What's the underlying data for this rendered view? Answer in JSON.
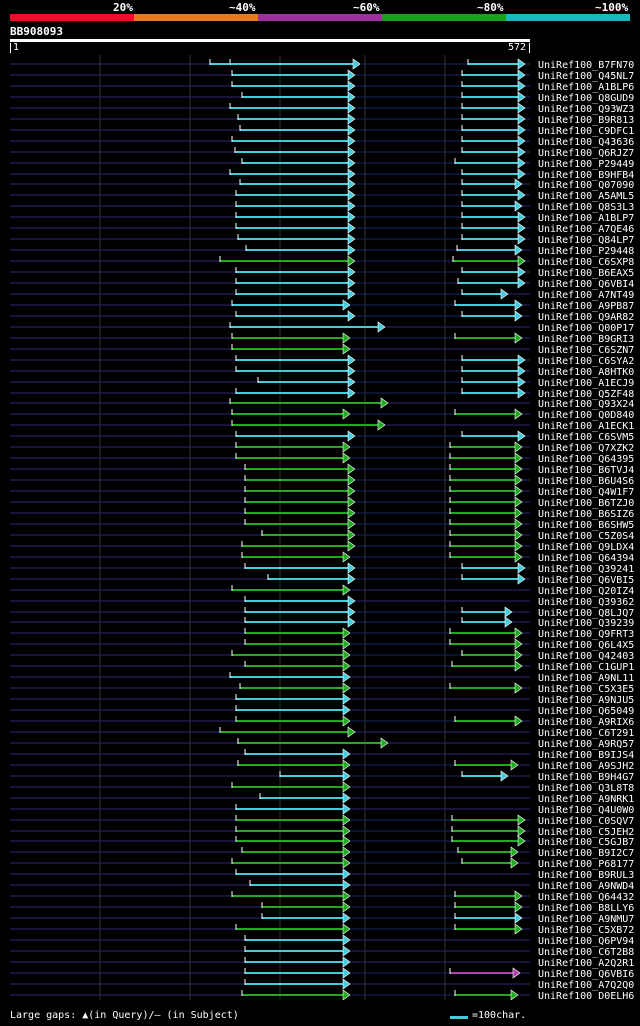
{
  "legend": {
    "labels": [
      "20%",
      "~40%",
      "~60%",
      "~80%",
      "~100%"
    ],
    "colors": [
      "#e8102a",
      "#e87a1e",
      "#a030a0",
      "#1aa01a",
      "#1ab8c0"
    ]
  },
  "query": {
    "name": "BB908093",
    "start": "1",
    "end": "572"
  },
  "footer": {
    "gaps_label": "Large gaps: ▲(in Query)/– (in Subject)",
    "scale_label": "=100char."
  },
  "hits": [
    {
      "name": "UniRef100_B7FN70",
      "c": "teal",
      "segs": [
        [
          230,
          360,
          "r"
        ],
        [
          468,
          525,
          "r"
        ]
      ],
      "pre": 210
    },
    {
      "name": "UniRef100_Q45NL7",
      "c": "teal",
      "segs": [
        [
          232,
          355,
          "r"
        ],
        [
          462,
          525,
          "r"
        ]
      ]
    },
    {
      "name": "UniRef100_A1BLP6",
      "c": "teal",
      "segs": [
        [
          232,
          355,
          "r"
        ],
        [
          462,
          525,
          "r"
        ]
      ]
    },
    {
      "name": "UniRef100_Q8GUD9",
      "c": "teal",
      "segs": [
        [
          242,
          355,
          "r"
        ],
        [
          462,
          525,
          "r"
        ]
      ]
    },
    {
      "name": "UniRef100_Q93WZ3",
      "c": "teal",
      "segs": [
        [
          230,
          355,
          "r"
        ],
        [
          462,
          525,
          "r"
        ]
      ]
    },
    {
      "name": "UniRef100_B9R813",
      "c": "teal",
      "segs": [
        [
          238,
          355,
          "r"
        ],
        [
          462,
          525,
          "r"
        ]
      ]
    },
    {
      "name": "UniRef100_C9DFC1",
      "c": "teal",
      "segs": [
        [
          240,
          355,
          "r"
        ],
        [
          462,
          525,
          "r"
        ]
      ]
    },
    {
      "name": "UniRef100_Q43636",
      "c": "teal",
      "segs": [
        [
          232,
          355,
          "r"
        ],
        [
          462,
          525,
          "r"
        ]
      ]
    },
    {
      "name": "UniRef100_Q6RJZ7",
      "c": "teal",
      "segs": [
        [
          235,
          355,
          "r"
        ],
        [
          462,
          525,
          "r"
        ]
      ]
    },
    {
      "name": "UniRef100_P29449",
      "c": "teal",
      "segs": [
        [
          242,
          355,
          "r"
        ],
        [
          455,
          525,
          "r"
        ]
      ]
    },
    {
      "name": "UniRef100_B9HFB4",
      "c": "teal",
      "segs": [
        [
          230,
          355,
          "r"
        ],
        [
          462,
          525,
          "r"
        ]
      ]
    },
    {
      "name": "UniRef100_Q07090",
      "c": "teal",
      "segs": [
        [
          240,
          355,
          "r"
        ],
        [
          462,
          522,
          "r"
        ]
      ]
    },
    {
      "name": "UniRef100_A5AML5",
      "c": "teal",
      "segs": [
        [
          236,
          355,
          "r"
        ],
        [
          462,
          525,
          "r"
        ]
      ]
    },
    {
      "name": "UniRef100_Q8S3L3",
      "c": "teal",
      "segs": [
        [
          236,
          355,
          "r"
        ],
        [
          462,
          522,
          "r"
        ]
      ]
    },
    {
      "name": "UniRef100_A1BLP7",
      "c": "teal",
      "segs": [
        [
          236,
          355,
          "r"
        ],
        [
          462,
          525,
          "r"
        ]
      ]
    },
    {
      "name": "UniRef100_A7QE46",
      "c": "teal",
      "segs": [
        [
          236,
          355,
          "r"
        ],
        [
          462,
          525,
          "r"
        ]
      ]
    },
    {
      "name": "UniRef100_Q84LP7",
      "c": "teal",
      "segs": [
        [
          238,
          355,
          "r"
        ],
        [
          462,
          525,
          "r"
        ]
      ]
    },
    {
      "name": "UniRef100_P29448",
      "c": "teal",
      "segs": [
        [
          246,
          355,
          "r"
        ],
        [
          457,
          522,
          "r"
        ]
      ]
    },
    {
      "name": "UniRef100_C6SXP8",
      "c": "green",
      "segs": [
        [
          220,
          355,
          "r"
        ],
        [
          453,
          525,
          "r"
        ]
      ]
    },
    {
      "name": "UniRef100_B6EAX5",
      "c": "teal",
      "segs": [
        [
          236,
          355,
          "r"
        ],
        [
          462,
          525,
          "r"
        ]
      ]
    },
    {
      "name": "UniRef100_Q6VBI4",
      "c": "teal",
      "segs": [
        [
          236,
          355,
          "r"
        ],
        [
          458,
          525,
          "r"
        ]
      ]
    },
    {
      "name": "UniRef100_A7NT49",
      "c": "teal",
      "segs": [
        [
          236,
          355,
          "r"
        ],
        [
          462,
          508,
          "r"
        ]
      ]
    },
    {
      "name": "UniRef100_A9PB87",
      "c": "teal",
      "segs": [
        [
          232,
          350,
          "r"
        ],
        [
          455,
          522,
          "r"
        ]
      ]
    },
    {
      "name": "UniRef100_Q9AR82",
      "c": "teal",
      "segs": [
        [
          236,
          355,
          "r"
        ],
        [
          462,
          522,
          "r"
        ]
      ]
    },
    {
      "name": "UniRef100_Q00P17",
      "c": "teal",
      "segs": [
        [
          230,
          385,
          "r"
        ]
      ]
    },
    {
      "name": "UniRef100_B9GRI3",
      "c": "green",
      "segs": [
        [
          232,
          350,
          "r"
        ],
        [
          455,
          522,
          "r"
        ]
      ]
    },
    {
      "name": "UniRef100_C6SZN7",
      "c": "green",
      "segs": [
        [
          232,
          350,
          "r"
        ]
      ]
    },
    {
      "name": "UniRef100_C6SYA2",
      "c": "teal",
      "segs": [
        [
          236,
          355,
          "r"
        ],
        [
          462,
          525,
          "r"
        ]
      ]
    },
    {
      "name": "UniRef100_A8HTK0",
      "c": "teal",
      "segs": [
        [
          236,
          355,
          "r"
        ],
        [
          462,
          525,
          "r"
        ]
      ]
    },
    {
      "name": "UniRef100_A1ECJ9",
      "c": "teal",
      "segs": [
        [
          258,
          355,
          "r"
        ],
        [
          462,
          525,
          "r"
        ]
      ]
    },
    {
      "name": "UniRef100_Q5ZF48",
      "c": "teal",
      "segs": [
        [
          236,
          355,
          "r"
        ],
        [
          462,
          525,
          "r"
        ]
      ]
    },
    {
      "name": "UniRef100_Q93X24",
      "c": "green",
      "segs": [
        [
          230,
          388,
          "r"
        ]
      ]
    },
    {
      "name": "UniRef100_Q0D840",
      "c": "green",
      "segs": [
        [
          232,
          350,
          "r"
        ],
        [
          455,
          522,
          "r"
        ]
      ]
    },
    {
      "name": "UniRef100_A1ECK1",
      "c": "green",
      "segs": [
        [
          232,
          385,
          "r"
        ]
      ]
    },
    {
      "name": "UniRef100_C6SVM5",
      "c": "teal",
      "segs": [
        [
          236,
          355,
          "r"
        ],
        [
          462,
          525,
          "r"
        ]
      ]
    },
    {
      "name": "UniRef100_Q7XZK2",
      "c": "green",
      "segs": [
        [
          236,
          350,
          "r"
        ],
        [
          450,
          522,
          "r"
        ]
      ]
    },
    {
      "name": "UniRef100_Q64395",
      "c": "green",
      "segs": [
        [
          236,
          350,
          "r"
        ],
        [
          450,
          522,
          "r"
        ]
      ]
    },
    {
      "name": "UniRef100_B6TVJ4",
      "c": "green",
      "segs": [
        [
          245,
          355,
          "r"
        ],
        [
          450,
          522,
          "r"
        ]
      ]
    },
    {
      "name": "UniRef100_B6U4S6",
      "c": "green",
      "segs": [
        [
          245,
          355,
          "r"
        ],
        [
          450,
          522,
          "r"
        ]
      ]
    },
    {
      "name": "UniRef100_Q4W1F7",
      "c": "green",
      "segs": [
        [
          245,
          355,
          "r"
        ],
        [
          450,
          522,
          "r"
        ]
      ]
    },
    {
      "name": "UniRef100_B6TZJ0",
      "c": "green",
      "segs": [
        [
          245,
          355,
          "r"
        ],
        [
          450,
          522,
          "r"
        ]
      ]
    },
    {
      "name": "UniRef100_B6SIZ6",
      "c": "green",
      "segs": [
        [
          245,
          355,
          "r"
        ],
        [
          450,
          522,
          "r"
        ]
      ]
    },
    {
      "name": "UniRef100_B6SHW5",
      "c": "green",
      "segs": [
        [
          245,
          355,
          "r"
        ],
        [
          450,
          522,
          "r"
        ]
      ]
    },
    {
      "name": "UniRef100_C5Z0S4",
      "c": "green",
      "segs": [
        [
          262,
          355,
          "r"
        ],
        [
          450,
          522,
          "r"
        ]
      ]
    },
    {
      "name": "UniRef100_Q9LDX4",
      "c": "green",
      "segs": [
        [
          242,
          355,
          "r"
        ],
        [
          450,
          522,
          "r"
        ]
      ]
    },
    {
      "name": "UniRef100_Q64394",
      "c": "green",
      "segs": [
        [
          242,
          350,
          "r"
        ],
        [
          450,
          522,
          "r"
        ]
      ]
    },
    {
      "name": "UniRef100_Q39241",
      "c": "teal",
      "segs": [
        [
          245,
          355,
          "r"
        ],
        [
          462,
          525,
          "r"
        ]
      ]
    },
    {
      "name": "UniRef100_Q6VBI5",
      "c": "teal",
      "segs": [
        [
          268,
          355,
          "r"
        ],
        [
          462,
          525,
          "r"
        ]
      ]
    },
    {
      "name": "UniRef100_Q20IZ4",
      "c": "green",
      "segs": [
        [
          232,
          350,
          "r"
        ]
      ]
    },
    {
      "name": "UniRef100_Q39362",
      "c": "teal",
      "segs": [
        [
          245,
          355,
          "r"
        ]
      ]
    },
    {
      "name": "UniRef100_Q8LJQ7",
      "c": "teal",
      "segs": [
        [
          245,
          355,
          "r"
        ],
        [
          462,
          512,
          "r"
        ]
      ]
    },
    {
      "name": "UniRef100_Q39239",
      "c": "teal",
      "segs": [
        [
          245,
          355,
          "r"
        ],
        [
          462,
          512,
          "r"
        ]
      ]
    },
    {
      "name": "UniRef100_Q9FRT3",
      "c": "green",
      "segs": [
        [
          245,
          350,
          "r"
        ],
        [
          450,
          522,
          "r"
        ]
      ]
    },
    {
      "name": "UniRef100_Q6L4X5",
      "c": "green",
      "segs": [
        [
          245,
          350,
          "r"
        ],
        [
          450,
          522,
          "r"
        ]
      ]
    },
    {
      "name": "UniRef100_Q42403",
      "c": "green",
      "segs": [
        [
          232,
          350,
          "r"
        ],
        [
          462,
          522,
          "r"
        ]
      ]
    },
    {
      "name": "UniRef100_C1GUP1",
      "c": "green",
      "segs": [
        [
          245,
          350,
          "r"
        ],
        [
          452,
          522,
          "r"
        ]
      ]
    },
    {
      "name": "UniRef100_A9NL11",
      "c": "teal",
      "segs": [
        [
          230,
          350,
          "r"
        ]
      ]
    },
    {
      "name": "UniRef100_C5X3E5",
      "c": "green",
      "segs": [
        [
          240,
          350,
          "r"
        ],
        [
          450,
          522,
          "r"
        ]
      ]
    },
    {
      "name": "UniRef100_A9NJU5",
      "c": "teal",
      "segs": [
        [
          236,
          350,
          "r"
        ]
      ]
    },
    {
      "name": "UniRef100_Q65049",
      "c": "teal",
      "segs": [
        [
          236,
          350,
          "r"
        ]
      ]
    },
    {
      "name": "UniRef100_A9RIX6",
      "c": "green",
      "segs": [
        [
          236,
          350,
          "r"
        ],
        [
          455,
          522,
          "r"
        ]
      ]
    },
    {
      "name": "UniRef100_C6T291",
      "c": "green",
      "segs": [
        [
          220,
          355,
          "r"
        ]
      ]
    },
    {
      "name": "UniRef100_A9RQ57",
      "c": "green",
      "segs": [
        [
          238,
          388,
          "r"
        ]
      ]
    },
    {
      "name": "UniRef100_B9IJS4",
      "c": "teal",
      "segs": [
        [
          245,
          350,
          "r"
        ]
      ]
    },
    {
      "name": "UniRef100_A9SJH2",
      "c": "green",
      "segs": [
        [
          238,
          350,
          "r"
        ],
        [
          455,
          518,
          "r"
        ]
      ]
    },
    {
      "name": "UniRef100_B9H4G7",
      "c": "teal",
      "segs": [
        [
          280,
          350,
          "r"
        ],
        [
          462,
          508,
          "r"
        ]
      ]
    },
    {
      "name": "UniRef100_Q3L8T8",
      "c": "green",
      "segs": [
        [
          232,
          350,
          "r"
        ]
      ]
    },
    {
      "name": "UniRef100_A9NRK1",
      "c": "teal",
      "segs": [
        [
          260,
          350,
          "r"
        ]
      ]
    },
    {
      "name": "UniRef100_Q4U0W0",
      "c": "teal",
      "segs": [
        [
          236,
          350,
          "r"
        ]
      ]
    },
    {
      "name": "UniRef100_C0SQV7",
      "c": "green",
      "segs": [
        [
          236,
          350,
          "r"
        ],
        [
          452,
          525,
          "r"
        ]
      ]
    },
    {
      "name": "UniRef100_C5JEH2",
      "c": "green",
      "segs": [
        [
          236,
          350,
          "r"
        ],
        [
          452,
          525,
          "r"
        ]
      ]
    },
    {
      "name": "UniRef100_C5GJB7",
      "c": "green",
      "segs": [
        [
          236,
          350,
          "r"
        ],
        [
          452,
          525,
          "r"
        ]
      ]
    },
    {
      "name": "UniRef100_B9I2C7",
      "c": "green",
      "segs": [
        [
          242,
          350,
          "r"
        ],
        [
          458,
          518,
          "r"
        ]
      ]
    },
    {
      "name": "UniRef100_P68177",
      "c": "green",
      "segs": [
        [
          232,
          350,
          "r"
        ],
        [
          462,
          518,
          "r"
        ]
      ]
    },
    {
      "name": "UniRef100_B9RUL3",
      "c": "teal",
      "segs": [
        [
          236,
          350,
          "r"
        ]
      ]
    },
    {
      "name": "UniRef100_A9NWD4",
      "c": "teal",
      "segs": [
        [
          250,
          350,
          "r"
        ]
      ]
    },
    {
      "name": "UniRef100_Q64432",
      "c": "green",
      "segs": [
        [
          232,
          350,
          "r"
        ],
        [
          455,
          522,
          "r"
        ]
      ]
    },
    {
      "name": "UniRef100_B8LLY6",
      "c": "green",
      "segs": [
        [
          262,
          350,
          "r"
        ],
        [
          455,
          522,
          "r"
        ]
      ]
    },
    {
      "name": "UniRef100_A9NMU7",
      "c": "teal",
      "segs": [
        [
          262,
          350,
          "r"
        ],
        [
          455,
          522,
          "r"
        ]
      ]
    },
    {
      "name": "UniRef100_C5XB72",
      "c": "green",
      "segs": [
        [
          236,
          350,
          "r"
        ],
        [
          455,
          522,
          "r"
        ]
      ]
    },
    {
      "name": "UniRef100_Q6PV94",
      "c": "teal",
      "segs": [
        [
          245,
          350,
          "r"
        ]
      ]
    },
    {
      "name": "UniRef100_C6T2B8",
      "c": "teal",
      "segs": [
        [
          245,
          350,
          "r"
        ]
      ]
    },
    {
      "name": "UniRef100_A2Q2R1",
      "c": "teal",
      "segs": [
        [
          245,
          350,
          "r"
        ]
      ]
    },
    {
      "name": "UniRef100_Q6VBI6",
      "c": "teal",
      "segs": [
        [
          245,
          350,
          "r"
        ],
        [
          450,
          520,
          "m"
        ]
      ]
    },
    {
      "name": "UniRef100_A7Q2Q0",
      "c": "teal",
      "segs": [
        [
          245,
          350,
          "r"
        ]
      ]
    },
    {
      "name": "UniRef100_D0ELH6",
      "c": "green",
      "segs": [
        [
          242,
          350,
          "r"
        ],
        [
          455,
          518,
          "r"
        ]
      ]
    }
  ]
}
